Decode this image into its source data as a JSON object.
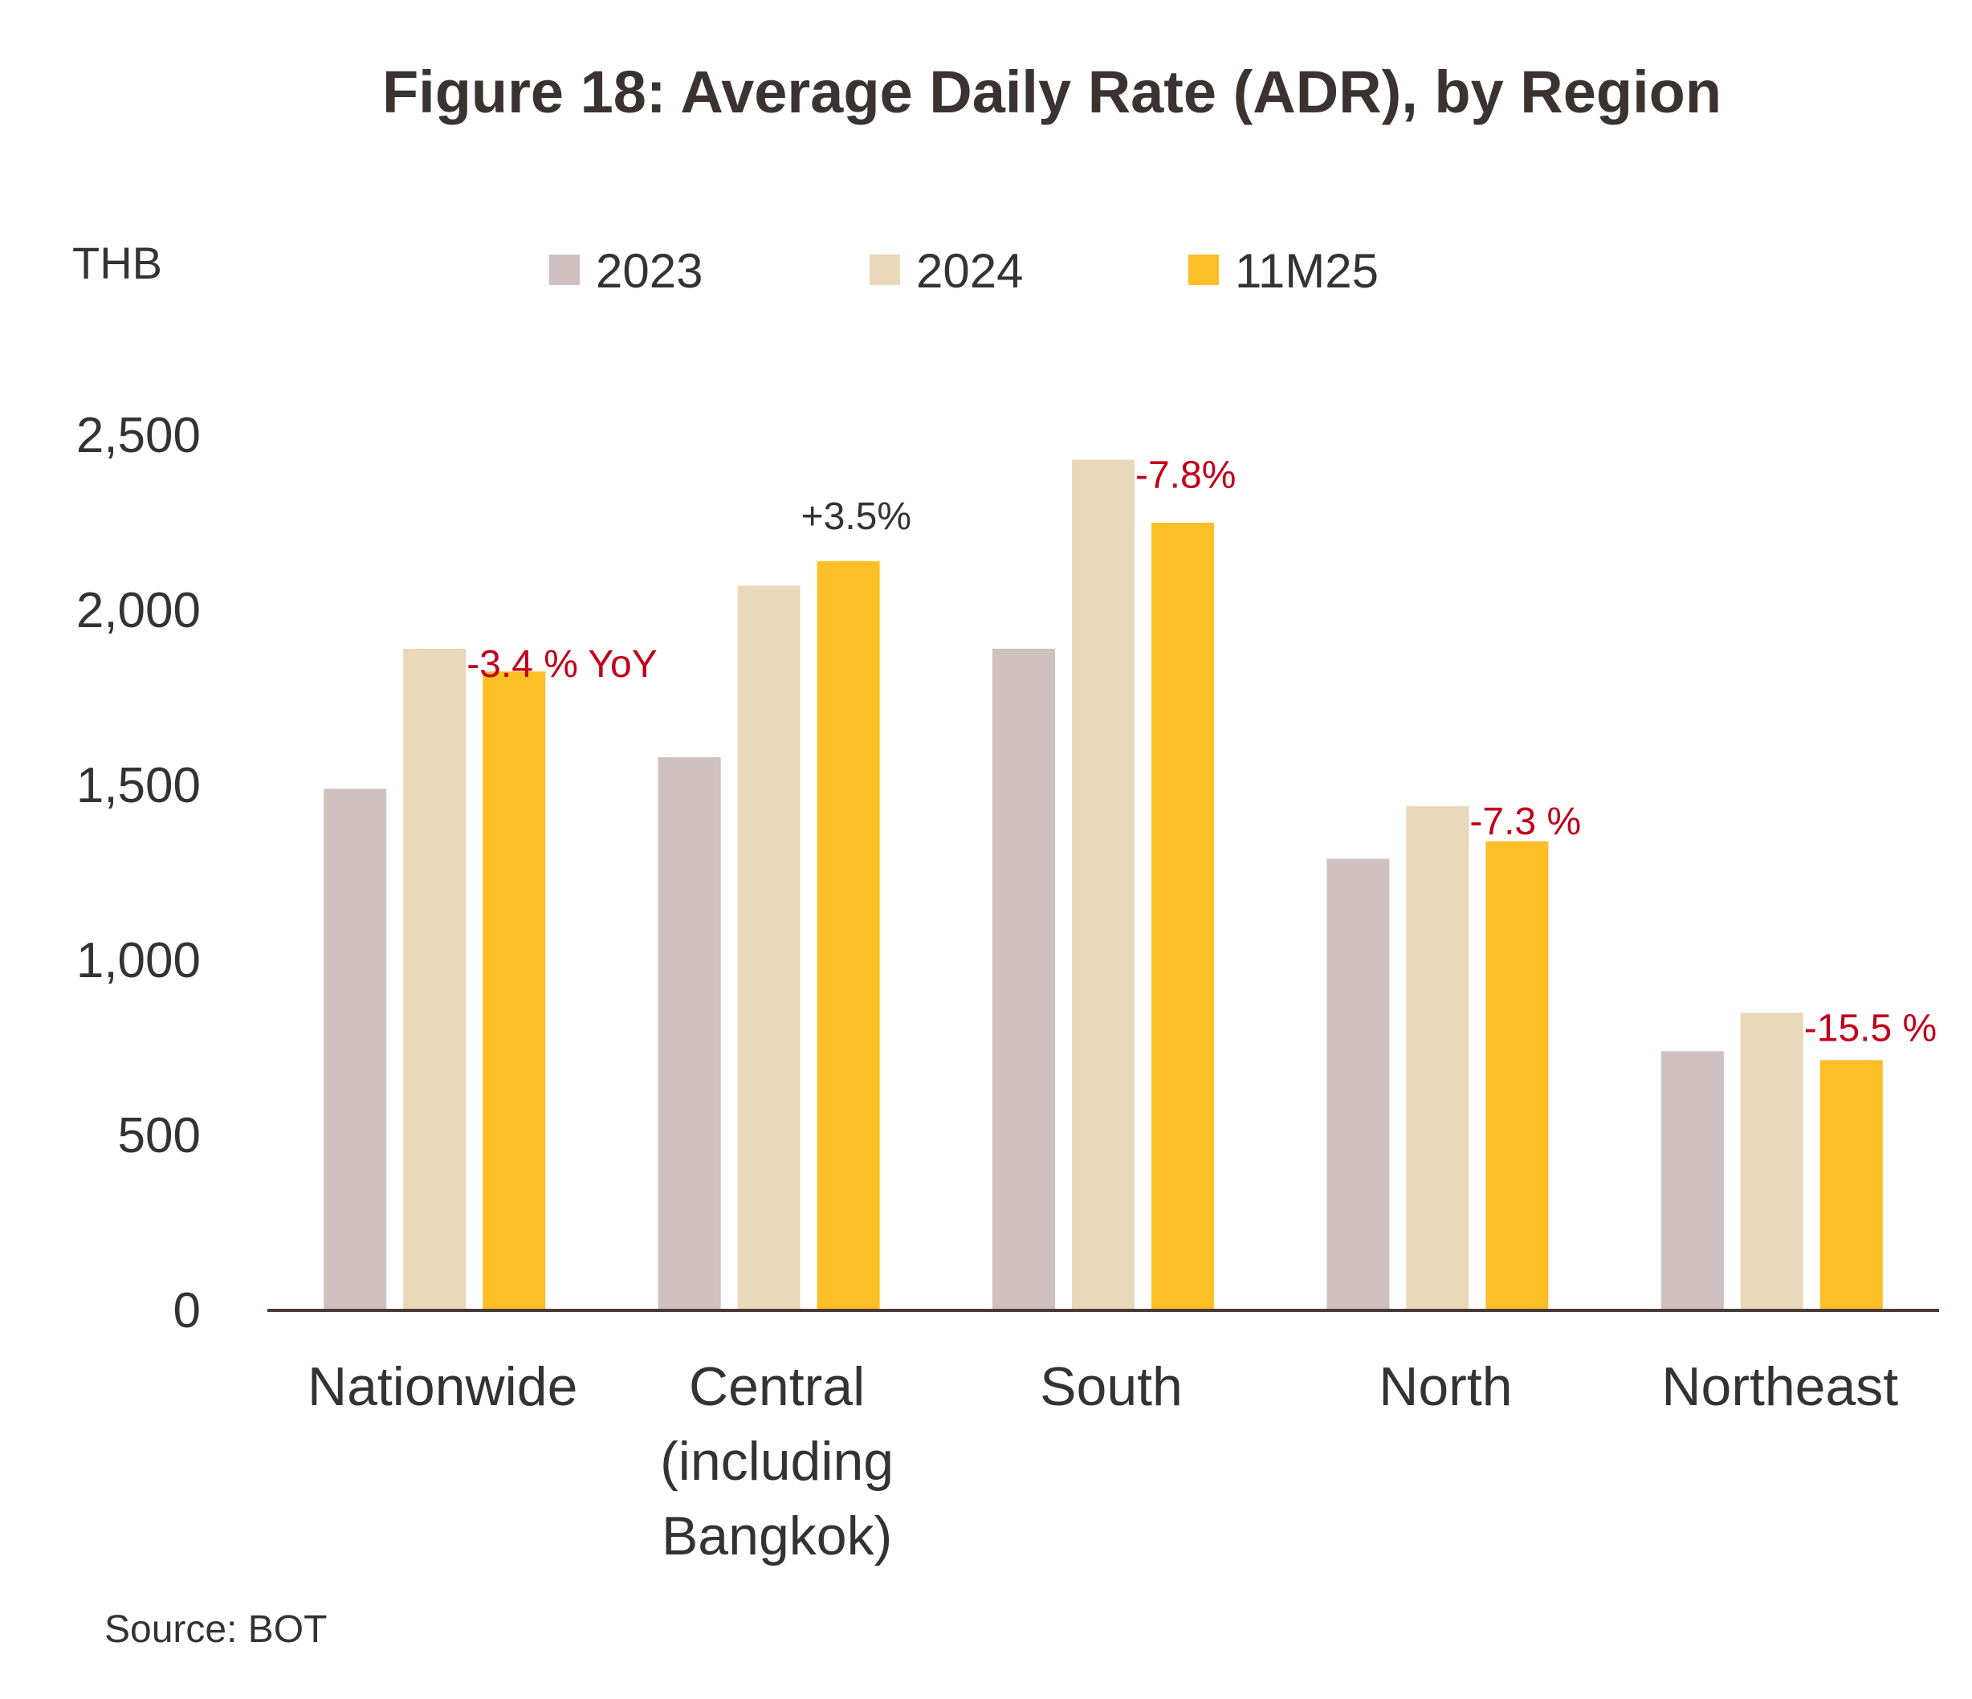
{
  "chart_data": {
    "type": "bar",
    "title": "Figure 18: Average Daily Rate (ADR), by Region",
    "ylabel": "THB",
    "ylim": [
      0,
      2500
    ],
    "yticks": [
      {
        "value": 0,
        "label": "0"
      },
      {
        "value": 500,
        "label": "500"
      },
      {
        "value": 1000,
        "label": "1,000"
      },
      {
        "value": 1500,
        "label": "1,500"
      },
      {
        "value": 2000,
        "label": "2,000"
      },
      {
        "value": 2500,
        "label": "2,500"
      }
    ],
    "categories": [
      [
        "Nationwide"
      ],
      [
        "Central",
        "(including",
        "Bangkok)"
      ],
      [
        "South"
      ],
      [
        "North"
      ],
      [
        "Northeast"
      ]
    ],
    "series": [
      {
        "name": "2023",
        "color": "#cec1bf",
        "values": [
          1490,
          1580,
          1890,
          1290,
          740
        ]
      },
      {
        "name": "2024",
        "color": "#e9d8b9",
        "values": [
          1890,
          2070,
          2430,
          1440,
          850
        ]
      },
      {
        "name": "11M25",
        "color": "#fdbf26",
        "values": [
          1825,
          2140,
          2250,
          1340,
          715
        ]
      }
    ],
    "annotations": [
      {
        "category_index": 0,
        "text": "-3.4 % YoY",
        "color": "#c0001b"
      },
      {
        "category_index": 1,
        "text": "+3.5%",
        "color": "#333333"
      },
      {
        "category_index": 2,
        "text": "-7.8%",
        "color": "#c0001b"
      },
      {
        "category_index": 3,
        "text": "-7.3 %",
        "color": "#c0001b"
      },
      {
        "category_index": 4,
        "text": "-15.5 %",
        "color": "#c0001b"
      }
    ],
    "legend": "top",
    "grid": false,
    "source": "Source: BOT"
  }
}
